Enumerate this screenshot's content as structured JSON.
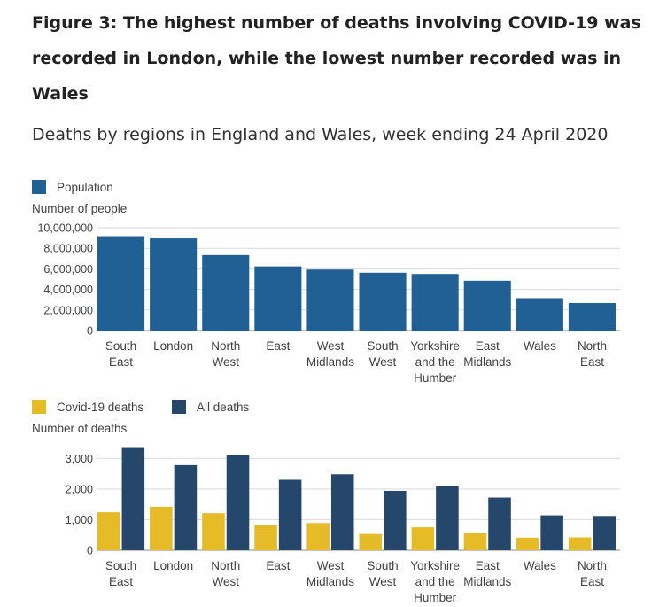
{
  "figure": {
    "title": "Figure 3: The highest number of deaths involving COVID-19 was recorded in London, while the lowest number recorded was in Wales",
    "subtitle": "Deaths by regions in England and Wales, week ending 24 April 2020"
  },
  "chart_data": [
    {
      "type": "bar",
      "ylabel": "Number of people",
      "ylim": [
        0,
        10000000
      ],
      "yticks": [
        0,
        2000000,
        4000000,
        6000000,
        8000000,
        10000000
      ],
      "ytick_labels": [
        "0",
        "2,000,000",
        "4,000,000",
        "6,000,000",
        "8,000,000",
        "10,000,000"
      ],
      "grid": true,
      "legend": "top-left",
      "categories": [
        [
          "South",
          "East"
        ],
        [
          "London"
        ],
        [
          "North",
          "West"
        ],
        [
          "East"
        ],
        [
          "West",
          "Midlands"
        ],
        [
          "South",
          "West"
        ],
        [
          "Yorkshire",
          "and the",
          "Humber"
        ],
        [
          "East",
          "Midlands"
        ],
        [
          "Wales"
        ],
        [
          "North",
          "East"
        ]
      ],
      "series": [
        {
          "name": "Population",
          "color": "#206095",
          "values": [
            9180000,
            8960000,
            7340000,
            6240000,
            5930000,
            5620000,
            5500000,
            4840000,
            3150000,
            2670000
          ]
        }
      ]
    },
    {
      "type": "bar",
      "ylabel": "Number of deaths",
      "ylim": [
        0,
        3500
      ],
      "yticks": [
        0,
        1000,
        2000,
        3000
      ],
      "ytick_labels": [
        "0",
        "1,000",
        "2,000",
        "3,000"
      ],
      "grid": true,
      "legend": "top-left",
      "categories": [
        [
          "South",
          "East"
        ],
        [
          "London"
        ],
        [
          "North",
          "West"
        ],
        [
          "East"
        ],
        [
          "West",
          "Midlands"
        ],
        [
          "South",
          "West"
        ],
        [
          "Yorkshire",
          "and the",
          "Humber"
        ],
        [
          "East",
          "Midlands"
        ],
        [
          "Wales"
        ],
        [
          "North",
          "East"
        ]
      ],
      "series": [
        {
          "name": "Covid-19 deaths",
          "color": "#e5bb27",
          "values": [
            1240,
            1420,
            1210,
            810,
            890,
            530,
            750,
            560,
            410,
            420
          ]
        },
        {
          "name": "All deaths",
          "color": "#24476b",
          "values": [
            3340,
            2780,
            3110,
            2300,
            2480,
            1940,
            2100,
            1720,
            1140,
            1120
          ]
        }
      ]
    }
  ]
}
